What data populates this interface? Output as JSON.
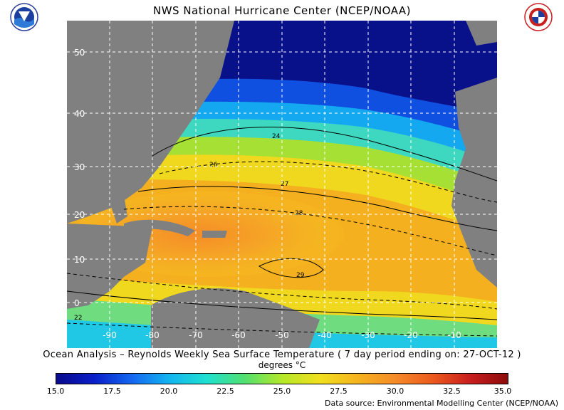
{
  "header": {
    "title": "NWS National Hurricane Center (NCEP/NOAA)",
    "left_logo": "noaa-logo",
    "right_logo": "national-weather-service-logo"
  },
  "map": {
    "region": "North Atlantic",
    "lat_labels": [
      "50",
      "40",
      "30",
      "20",
      "10",
      "0"
    ],
    "lon_labels": [
      "-90",
      "-80",
      "-70",
      "-60",
      "-50",
      "-40",
      "-30",
      "-20",
      "-10"
    ],
    "contour_labels": [
      "22",
      "24",
      "26",
      "27",
      "28",
      "29"
    ],
    "land_color": "#808080",
    "grid_style": "white dashed"
  },
  "subtitle": "Ocean Analysis – Reynolds Weekly Sea Surface Temperature ( 7 day period ending on: 27-OCT-12 )",
  "units": "degrees °C",
  "colorbar": {
    "ticks": [
      "15.0",
      "17.5",
      "20.0",
      "22.5",
      "25.0",
      "27.5",
      "30.0",
      "32.5",
      "35.0"
    ],
    "min": 15,
    "max": 35,
    "colors": [
      "#0a0a8c",
      "#0a1ec8",
      "#1466f0",
      "#12b4f0",
      "#1ee0d0",
      "#50e070",
      "#b4e828",
      "#f0e01e",
      "#f5b41e",
      "#f58c28",
      "#ec5a1e",
      "#c81e1e",
      "#8c0a0a"
    ]
  },
  "source": "Data source: Environmental Modelling Center (NCEP/NOAA)"
}
